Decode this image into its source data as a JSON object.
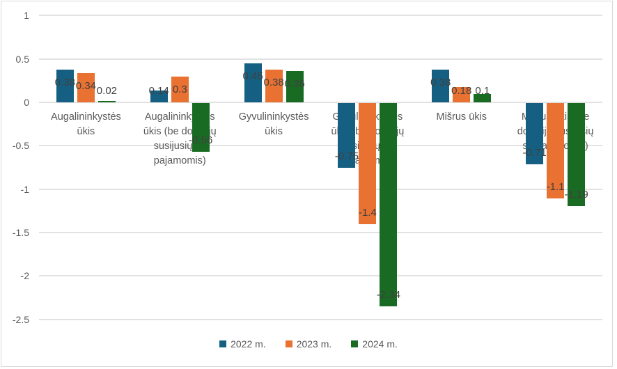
{
  "chart_data": {
    "type": "bar",
    "title": "",
    "xlabel": "",
    "ylabel": "",
    "categories": [
      "Augalininkystės ūkis",
      "Augalininkystės ūkis (be dotacijų susijusių su pajamomis)",
      "Gyvulininkystės ūkis",
      "Gyvulininkystės ūkis (be dotacijų susijusių su pajamomis)",
      "Mišrus ūkis",
      "Mišrus ūkis (be dotacijų susijusių su pajamomis)"
    ],
    "category_lines": [
      [
        "Augalininkystės",
        "ūkis"
      ],
      [
        "Augalininkystės",
        "ūkis (be dotacijų",
        "susijusių su",
        "pajamomis)"
      ],
      [
        "Gyvulininkystės",
        "ūkis"
      ],
      [
        "Gyvulininkystės",
        "ūkis (be dotacijų",
        "susijusių su",
        "pajamomis)"
      ],
      [
        "Mišrus ūkis"
      ],
      [
        "Mišrus ūkis (be",
        "dotacijų susijusių",
        "su pajamomis)"
      ]
    ],
    "series": [
      {
        "name": "2022 m.",
        "color": "#156082",
        "values": [
          0.38,
          0.14,
          0.45,
          -0.75,
          0.38,
          -0.71
        ],
        "labels": [
          "0.38",
          "0.14",
          "0.45",
          "-0.75",
          "0.38",
          "-0.71"
        ]
      },
      {
        "name": "2023 m.",
        "color": "#E97132",
        "values": [
          0.34,
          0.3,
          0.38,
          -1.4,
          0.18,
          -1.1
        ],
        "labels": [
          "0.34",
          "0.3",
          "0.38",
          "-1.4",
          "0.18",
          "-1.1"
        ]
      },
      {
        "name": "2024 m.",
        "color": "#196B24",
        "values": [
          0.02,
          -0.56,
          0.36,
          -2.34,
          0.1,
          -1.19
        ],
        "labels": [
          "0.02",
          "-0.56",
          "0.36",
          "-2.34",
          "0.1",
          "-1.19"
        ]
      }
    ],
    "ylim": [
      -2.5,
      1
    ],
    "yticks": [
      1,
      0.5,
      0,
      -0.5,
      -1,
      -1.5,
      -2,
      -2.5
    ],
    "ytick_labels": [
      "1",
      "0.5",
      "0",
      "-0.5",
      "-1",
      "-1.5",
      "-2",
      "-2.5"
    ],
    "grid": true,
    "legend_position": "bottom"
  },
  "colors": {
    "background": "#FFFFFF",
    "frame_border": "#D9D9D9",
    "gridline": "#E2E2E2",
    "data_label": "#404040",
    "axis_label": "#595959",
    "category_label": "#595959",
    "legend_label": "#595959"
  }
}
